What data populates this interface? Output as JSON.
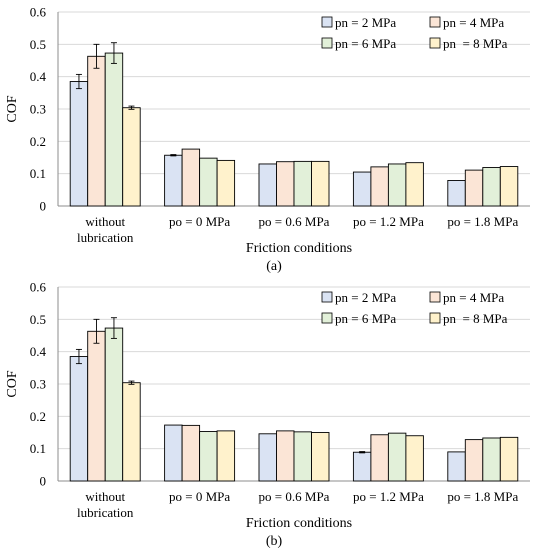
{
  "chart_data": [
    {
      "type": "bar",
      "panel_label": "(a)",
      "categories": [
        "without lubrication",
        "po = 0 MPa",
        "po = 0.6 MPa",
        "po = 1.2 MPa",
        "po = 1.8 MPa"
      ],
      "category_lines": [
        [
          "without",
          "lubrication"
        ],
        [
          "po = 0 MPa"
        ],
        [
          "po = 0.6 MPa"
        ],
        [
          "po = 1.2 MPa"
        ],
        [
          "po = 1.8 MPa"
        ]
      ],
      "series": [
        {
          "name": "pn = 2 MPa",
          "color": "#dae3f3",
          "values": [
            0.385,
            0.157,
            0.13,
            0.105,
            0.079
          ],
          "errors": [
            0.022,
            0.002,
            0.0,
            0.0,
            0.0
          ]
        },
        {
          "name": "pn = 4 MPa",
          "color": "#fbe5d6",
          "values": [
            0.463,
            0.176,
            0.137,
            0.121,
            0.111
          ],
          "errors": [
            0.037,
            0.0,
            0.0,
            0.0,
            0.0
          ]
        },
        {
          "name": "pn = 6 MPa",
          "color": "#e2f0d9",
          "values": [
            0.473,
            0.148,
            0.138,
            0.13,
            0.119
          ],
          "errors": [
            0.032,
            0.0,
            0.0,
            0.0,
            0.0
          ]
        },
        {
          "name": "pn  = 8 MPa",
          "color": "#fff2cc",
          "values": [
            0.304,
            0.141,
            0.138,
            0.134,
            0.122
          ],
          "errors": [
            0.005,
            0.0,
            0.0,
            0.0,
            0.0
          ]
        }
      ],
      "xlabel": "Friction conditions",
      "ylabel": "COF",
      "ylim": [
        0,
        0.6
      ],
      "yticks": [
        "0",
        "0.1",
        "0.2",
        "0.3",
        "0.4",
        "0.5",
        "0.6"
      ],
      "grid": true,
      "legend_position": "top-right"
    },
    {
      "type": "bar",
      "panel_label": "(b)",
      "categories": [
        "without lubrication",
        "po = 0 MPa",
        "po = 0.6 MPa",
        "po = 1.2 MPa",
        "po = 1.8 MPa"
      ],
      "category_lines": [
        [
          "without",
          "lubrication"
        ],
        [
          "po = 0 MPa"
        ],
        [
          "po = 0.6 MPa"
        ],
        [
          "po = 1.2 MPa"
        ],
        [
          "po = 1.8 MPa"
        ]
      ],
      "series": [
        {
          "name": "pn = 2 MPa",
          "color": "#dae3f3",
          "values": [
            0.385,
            0.173,
            0.146,
            0.089,
            0.09
          ],
          "errors": [
            0.022,
            0.0,
            0.0,
            0.002,
            0.0
          ]
        },
        {
          "name": "pn = 4 MPa",
          "color": "#fbe5d6",
          "values": [
            0.463,
            0.172,
            0.155,
            0.143,
            0.128
          ],
          "errors": [
            0.037,
            0.0,
            0.0,
            0.0,
            0.0
          ]
        },
        {
          "name": "pn = 6 MPa",
          "color": "#e2f0d9",
          "values": [
            0.473,
            0.153,
            0.152,
            0.148,
            0.133
          ],
          "errors": [
            0.032,
            0.0,
            0.0,
            0.0,
            0.0
          ]
        },
        {
          "name": "pn  = 8 MPa",
          "color": "#fff2cc",
          "values": [
            0.304,
            0.155,
            0.15,
            0.14,
            0.135
          ],
          "errors": [
            0.005,
            0.0,
            0.0,
            0.0,
            0.0
          ]
        }
      ],
      "xlabel": "Friction conditions",
      "ylabel": "COF",
      "ylim": [
        0,
        0.6
      ],
      "yticks": [
        "0",
        "0.1",
        "0.2",
        "0.3",
        "0.4",
        "0.5",
        "0.6"
      ],
      "grid": true,
      "legend_position": "top-right"
    }
  ]
}
